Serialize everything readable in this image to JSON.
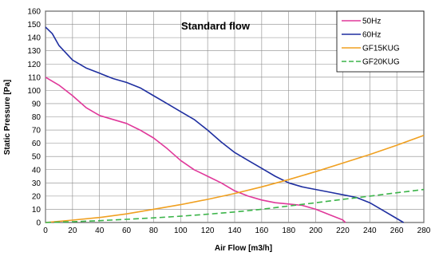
{
  "chart_data": {
    "type": "line",
    "title": "Standard flow",
    "xlabel": "Air Flow [m3/h]",
    "ylabel": "Static Pressure [Pa]",
    "xlim": [
      0,
      280
    ],
    "ylim": [
      0,
      160
    ],
    "x_ticks": [
      "0",
      "20",
      "40",
      "60",
      "80",
      "100",
      "120",
      "140",
      "160",
      "180",
      "200",
      "220",
      "240",
      "260",
      "280"
    ],
    "y_ticks": [
      "0",
      "10",
      "20",
      "30",
      "40",
      "50",
      "60",
      "70",
      "80",
      "90",
      "100",
      "110",
      "120",
      "130",
      "140",
      "150",
      "160"
    ],
    "grid": true,
    "legend_position": "top-right",
    "series": [
      {
        "name": "50Hz",
        "color": "#e0389a",
        "dash": "solid",
        "points": [
          [
            0,
            110
          ],
          [
            10,
            104
          ],
          [
            20,
            96
          ],
          [
            30,
            87
          ],
          [
            40,
            81
          ],
          [
            50,
            78
          ],
          [
            60,
            75
          ],
          [
            70,
            70
          ],
          [
            80,
            64
          ],
          [
            90,
            56
          ],
          [
            100,
            47
          ],
          [
            110,
            40
          ],
          [
            120,
            35
          ],
          [
            130,
            30
          ],
          [
            140,
            24
          ],
          [
            150,
            20
          ],
          [
            160,
            17
          ],
          [
            170,
            15
          ],
          [
            180,
            14
          ],
          [
            190,
            13
          ],
          [
            200,
            10
          ],
          [
            210,
            6
          ],
          [
            220,
            2
          ],
          [
            222,
            0
          ]
        ]
      },
      {
        "name": "60Hz",
        "color": "#1f2fa0",
        "dash": "solid",
        "points": [
          [
            0,
            148
          ],
          [
            5,
            143
          ],
          [
            10,
            134
          ],
          [
            20,
            123
          ],
          [
            30,
            117
          ],
          [
            40,
            113
          ],
          [
            50,
            109
          ],
          [
            60,
            106
          ],
          [
            70,
            102
          ],
          [
            80,
            96
          ],
          [
            90,
            90
          ],
          [
            100,
            84
          ],
          [
            110,
            78
          ],
          [
            120,
            70
          ],
          [
            130,
            61
          ],
          [
            140,
            53
          ],
          [
            150,
            47
          ],
          [
            160,
            41
          ],
          [
            170,
            35
          ],
          [
            180,
            30
          ],
          [
            190,
            27
          ],
          [
            200,
            25
          ],
          [
            210,
            23
          ],
          [
            220,
            21
          ],
          [
            230,
            19
          ],
          [
            240,
            15
          ],
          [
            250,
            9
          ],
          [
            260,
            3
          ],
          [
            265,
            0
          ]
        ]
      },
      {
        "name": "GF15KUG",
        "color": "#f0a020",
        "dash": "solid",
        "points": [
          [
            0,
            0
          ],
          [
            20,
            1.8
          ],
          [
            40,
            3.8
          ],
          [
            60,
            6.5
          ],
          [
            80,
            10
          ],
          [
            100,
            13.5
          ],
          [
            120,
            17.5
          ],
          [
            140,
            22
          ],
          [
            160,
            27
          ],
          [
            180,
            32.5
          ],
          [
            200,
            38.5
          ],
          [
            220,
            45
          ],
          [
            240,
            51.5
          ],
          [
            260,
            58.5
          ],
          [
            280,
            66
          ]
        ]
      },
      {
        "name": "GF20KUG",
        "color": "#3cb44a",
        "dash": "dashed",
        "points": [
          [
            0,
            0
          ],
          [
            20,
            0.6
          ],
          [
            40,
            1.4
          ],
          [
            60,
            2.4
          ],
          [
            80,
            3.5
          ],
          [
            100,
            4.8
          ],
          [
            120,
            6.3
          ],
          [
            140,
            8
          ],
          [
            160,
            10
          ],
          [
            180,
            12.5
          ],
          [
            200,
            15
          ],
          [
            220,
            17.5
          ],
          [
            240,
            20
          ],
          [
            260,
            22.5
          ],
          [
            280,
            25
          ]
        ]
      }
    ]
  }
}
